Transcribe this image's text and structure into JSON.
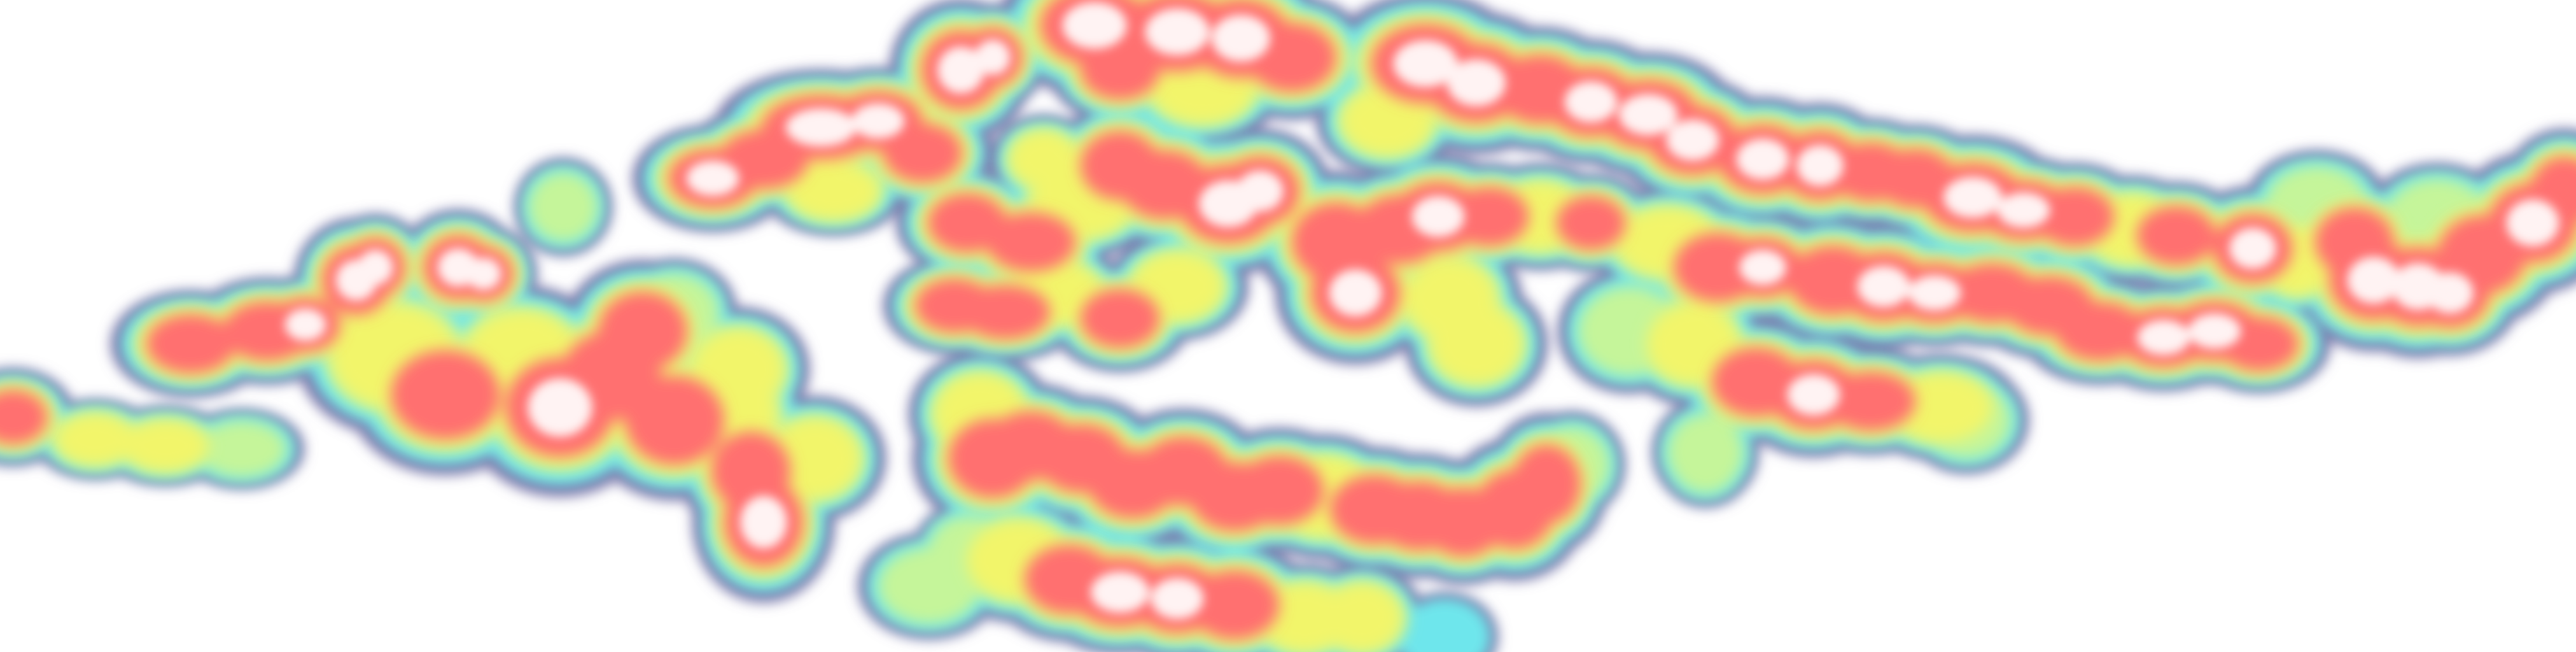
{
  "chart_data": {
    "type": "heatmap",
    "title": "",
    "xlabel": "",
    "ylabel": "",
    "legend": "none",
    "grid": false,
    "background": "#ffffff",
    "colormap": [
      "#7a74a8",
      "#6ee6ec",
      "#c5f59a",
      "#f2f56a",
      "#ff7a7a",
      "#ff6f6f",
      "#fff3f3"
    ]
  }
}
